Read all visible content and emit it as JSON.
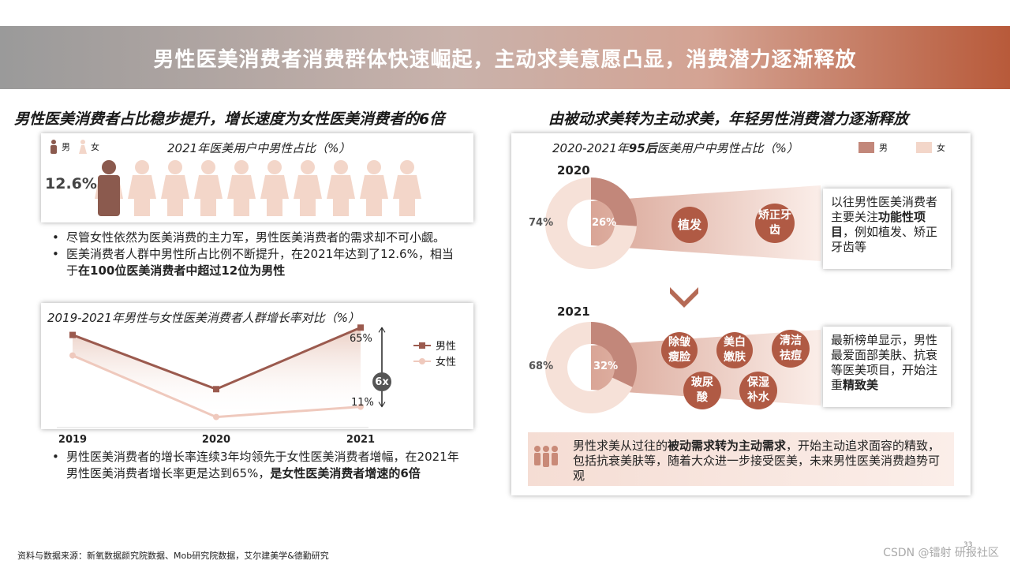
{
  "banner": {
    "title": "男性医美消费者消费群体快速崛起，主动求美意愿凸显，消费潜力逐渐释放"
  },
  "left": {
    "section_title": "男性医美消费者占比稳步提升，增长速度为女性医美消费者的6倍",
    "share_card": {
      "title": "2021年医美用户中男性占比（%）",
      "legend_male": "男",
      "legend_female": "女",
      "value_label": "12.6%",
      "male_share": 12.6,
      "colors": {
        "male": "#8b5a4e",
        "female": "#f3d6c9"
      }
    },
    "bullets1": {
      "b1": "尽管女性依然为医美消费的主力军，男性医美消费者的需求却不可小觑。",
      "b2_text": "医美消费者人群中男性所占比例不断提升，在2021年达到了12.6%，相当于",
      "b2_bold": "在100位医美消费者中超过12位为男性"
    },
    "growth_card": {
      "title": "2019-2021年男性与女性医美消费者人群增长率对比（%）",
      "legend": [
        "男性",
        "女性"
      ],
      "multiplier": "6x",
      "label_male_2021": "65%",
      "label_female_2021": "11%"
    },
    "bullets2": {
      "text": "男性医美消费者的增长率连续3年均领先于女性医美消费者增幅，在2021年男性医美消费者增长率更是达到65%，",
      "bold": "是女性医美消费者增速的6倍"
    }
  },
  "right": {
    "section_title": "由被动求美转为主动求美，年轻男性消费潜力逐渐释放",
    "card_title_pre": "2020-2021年",
    "card_title_em": "95后",
    "card_title_post": "医美用户中男性占比（%）",
    "legend_male": "男",
    "legend_female": "女",
    "y2020": {
      "year": "2020",
      "female_label": "74%",
      "male_label": "26%",
      "bubbles": [
        "植发",
        "矫正牙齿"
      ],
      "desc_text": "以往男性医美消费者主要关注",
      "desc_bold": "功能性项目",
      "desc_tail": "，例如植发、矫正牙齿等"
    },
    "y2021": {
      "year": "2021",
      "female_label": "68%",
      "male_label": "32%",
      "bubbles": [
        "除皱瘦脸",
        "美白嫩肤",
        "清洁祛痘",
        "玻尿酸",
        "保湿补水"
      ],
      "desc_text": "最新榜单显示，男性最爱面部美肤、抗衰等医美项目，开始注重",
      "desc_bold": "精致美"
    },
    "summary": {
      "pre": "男性求美从过往的",
      "bold": "被动需求转为主动需求",
      "post": "，开始主动追求面容的精致，包括抗衰美肤等，随着大众进一步接受医美，未来男性医美消费趋势可观"
    }
  },
  "footer": "资料与数据来源：新氧数据颜究院数据、Mob研究院数据，艾尔建美学&德勤研究",
  "watermark": "CSDN @镭射 研报社区",
  "page_number": "33",
  "chart_data": [
    {
      "type": "line",
      "title": "2019-2021年男性与女性医美消费者人群增长率对比（%）",
      "categories": [
        "2019",
        "2020",
        "2021"
      ],
      "series": [
        {
          "name": "男性",
          "values": [
            60,
            23,
            65
          ],
          "color": "#9b5a4e"
        },
        {
          "name": "女性",
          "values": [
            46,
            4,
            11
          ],
          "color": "#efc9bd"
        }
      ],
      "xlabel": "",
      "ylabel": "",
      "ylim": [
        0,
        70
      ]
    },
    {
      "type": "pie",
      "title": "2020年95后医美用户中男性占比（%）",
      "labels": [
        "男",
        "女"
      ],
      "values": [
        26,
        74
      ]
    },
    {
      "type": "pie",
      "title": "2021年95后医美用户中男性占比（%）",
      "labels": [
        "男",
        "女"
      ],
      "values": [
        32,
        68
      ]
    }
  ]
}
